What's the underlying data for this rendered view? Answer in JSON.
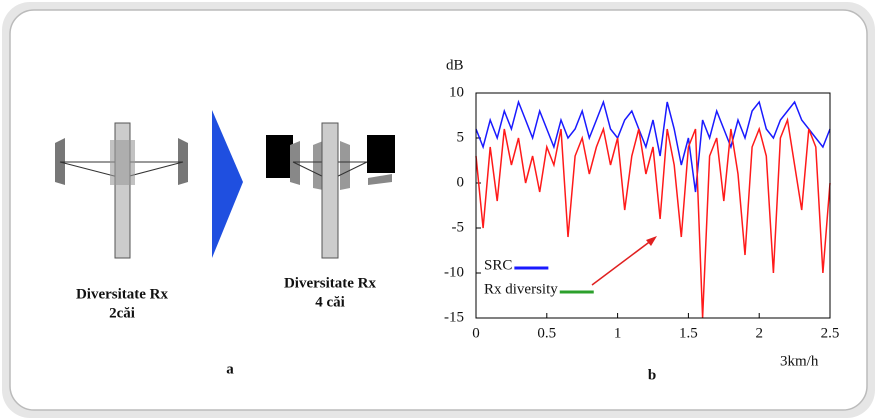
{
  "diagram": {
    "left": {
      "title": "Diversitate Rx",
      "subtitle": "2căi"
    },
    "right": {
      "title": "Diversitate Rx",
      "subtitle": "4 căi"
    }
  },
  "panel_labels": [
    "a",
    "b"
  ],
  "chart_data": {
    "type": "line",
    "y_label": "dB",
    "x_label": "3km/h",
    "x": [
      0,
      0.05,
      0.1,
      0.15,
      0.2,
      0.25,
      0.3,
      0.35,
      0.4,
      0.45,
      0.5,
      0.55,
      0.6,
      0.65,
      0.7,
      0.75,
      0.8,
      0.85,
      0.9,
      0.95,
      1,
      1.05,
      1.1,
      1.15,
      1.2,
      1.25,
      1.3,
      1.35,
      1.4,
      1.45,
      1.5,
      1.55,
      1.6,
      1.65,
      1.7,
      1.75,
      1.8,
      1.85,
      1.9,
      1.95,
      2,
      2.05,
      2.1,
      2.15,
      2.2,
      2.25,
      2.3,
      2.35,
      2.4,
      2.45,
      2.5
    ],
    "series": [
      {
        "name": "SRC",
        "color": "#1a1aff",
        "legend_color": "#1a1aff",
        "values": [
          6,
          4,
          7,
          5,
          8,
          6,
          9,
          7,
          5,
          8,
          6,
          4,
          7,
          5,
          6,
          8,
          5,
          7,
          9,
          6,
          5,
          7,
          8,
          6,
          4,
          7,
          3,
          9,
          6,
          2,
          5,
          -1,
          7,
          5,
          8,
          6,
          4,
          7,
          5,
          8,
          9,
          6,
          5,
          7,
          8,
          9,
          7,
          6,
          5,
          4,
          6
        ]
      },
      {
        "name": "Rx diversity",
        "color": "#ff1a1a",
        "legend_color": "#2ca02c",
        "values": [
          3,
          -5,
          4,
          -2,
          6,
          2,
          5,
          0,
          3,
          -1,
          4,
          2,
          6,
          -6,
          3,
          5,
          1,
          4,
          6,
          2,
          5,
          -3,
          3,
          6,
          1,
          4,
          -4,
          6,
          2,
          -6,
          4,
          6,
          -15,
          3,
          5,
          -2,
          6,
          1,
          -8,
          4,
          6,
          3,
          -10,
          5,
          7,
          2,
          -3,
          6,
          4,
          -10,
          0
        ]
      }
    ],
    "xlim": [
      0,
      2.5
    ],
    "ylim": [
      -15,
      10
    ],
    "xticks": [
      0,
      0.5,
      1,
      1.5,
      2,
      2.5
    ],
    "yticks": [
      10,
      5,
      0,
      -5,
      -10,
      -15
    ],
    "grid": false,
    "legend": "lower-left"
  }
}
